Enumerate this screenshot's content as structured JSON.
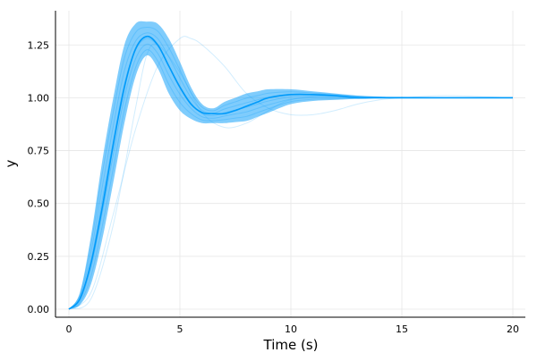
{
  "chart_data": {
    "type": "line",
    "title": "",
    "xlabel": "Time (s)",
    "ylabel": "y",
    "xlim": [
      -0.6,
      20.6
    ],
    "ylim": [
      -0.04,
      1.42
    ],
    "xticks": [
      0,
      5,
      10,
      15,
      20
    ],
    "xtick_labels": [
      "0",
      "5",
      "10",
      "15",
      "20"
    ],
    "yticks": [
      0,
      0.25,
      0.5,
      0.75,
      1.0,
      1.25
    ],
    "ytick_labels": [
      "0.00",
      "0.25",
      "0.50",
      "0.75",
      "1.00",
      "1.25"
    ],
    "grid": true,
    "legend": "none",
    "color": "#009AFA",
    "t": [
      0,
      0.5,
      1,
      1.5,
      2,
      2.5,
      3,
      3.5,
      4,
      4.5,
      5,
      5.5,
      6,
      6.5,
      7,
      7.5,
      8,
      8.5,
      9,
      10,
      11,
      12,
      13,
      14,
      15,
      17,
      20
    ],
    "mean": [
      0,
      0.05,
      0.22,
      0.48,
      0.78,
      1.05,
      1.23,
      1.29,
      1.25,
      1.15,
      1.05,
      0.97,
      0.93,
      0.925,
      0.925,
      0.94,
      0.96,
      0.98,
      1.0,
      1.015,
      1.015,
      1.01,
      1.0,
      1.0,
      1.0,
      1.0,
      1.0
    ],
    "lower": [
      0,
      0.02,
      0.12,
      0.33,
      0.6,
      0.88,
      1.1,
      1.2,
      1.14,
      1.02,
      0.94,
      0.9,
      0.88,
      0.88,
      0.88,
      0.885,
      0.89,
      0.91,
      0.93,
      0.97,
      0.985,
      0.99,
      0.995,
      0.998,
      1.0,
      1.0,
      1.0
    ],
    "upper": [
      0,
      0.08,
      0.35,
      0.7,
      1.0,
      1.25,
      1.35,
      1.36,
      1.35,
      1.28,
      1.17,
      1.05,
      0.97,
      0.95,
      0.98,
      1.0,
      1.02,
      1.03,
      1.04,
      1.04,
      1.03,
      1.02,
      1.01,
      1.005,
      1.003,
      1.0,
      1.0
    ],
    "outliers": [
      {
        "t": [
          0,
          1,
          2,
          3,
          4,
          5,
          5.5,
          6,
          7,
          8,
          9,
          10,
          11,
          12,
          13,
          14,
          15,
          17,
          20
        ],
        "y": [
          0,
          0.08,
          0.45,
          0.85,
          1.15,
          1.28,
          1.28,
          1.25,
          1.15,
          1.02,
          0.95,
          0.92,
          0.92,
          0.94,
          0.97,
          0.99,
          1.0,
          1.01,
          1.0
        ]
      },
      {
        "t": [
          0,
          1,
          2,
          3,
          3.5,
          4,
          5,
          6,
          7,
          8,
          9,
          10,
          12,
          15,
          20
        ],
        "y": [
          0,
          0.05,
          0.4,
          0.95,
          1.2,
          1.25,
          1.12,
          0.93,
          0.86,
          0.88,
          0.94,
          0.99,
          1.01,
          1.0,
          1.0
        ]
      }
    ]
  }
}
